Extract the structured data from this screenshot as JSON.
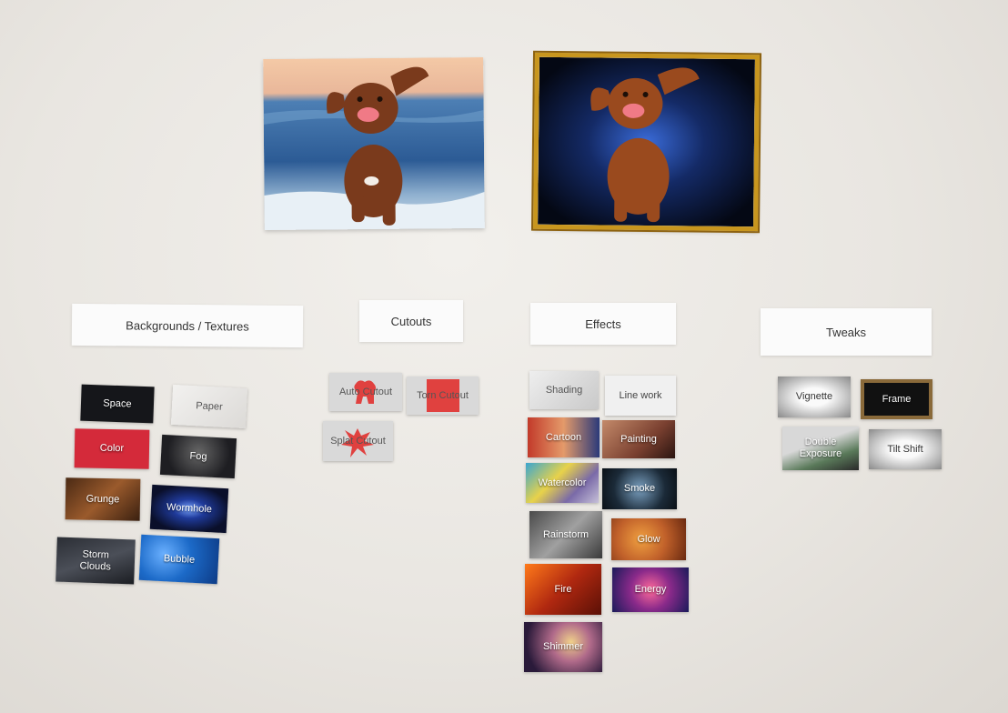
{
  "headers": {
    "backgrounds": "Backgrounds / Textures",
    "cutouts": "Cutouts",
    "effects": "Effects",
    "tweaks": "Tweaks"
  },
  "backgrounds": {
    "space": "Space",
    "paper": "Paper",
    "color": "Color",
    "fog": "Fog",
    "grunge": "Grunge",
    "wormhole": "Wormhole",
    "storm_clouds": "Storm Clouds",
    "bubble": "Bubble"
  },
  "cutouts": {
    "auto": "Auto Cutout",
    "torn": "Torn Cutout",
    "splat": "Splat Cutout"
  },
  "effects": {
    "shading": "Shading",
    "line_work": "Line work",
    "cartoon": "Cartoon",
    "painting": "Painting",
    "watercolor": "Watercolor",
    "smoke": "Smoke",
    "rainstorm": "Rainstorm",
    "glow": "Glow",
    "fire": "Fire",
    "energy": "Energy",
    "shimmer": "Shimmer"
  },
  "tweaks": {
    "vignette": "Vignette",
    "frame": "Frame",
    "double_exposure": "Double Exposure",
    "tilt_shift": "Tilt Shift"
  },
  "colors": {
    "frame_gold": "#c8961e",
    "color_tile": "#d42a3a",
    "torn_red": "#e0413f",
    "glow_blue": "#2a5bd0"
  },
  "icons": {
    "original_photo": "dog-running-beach-photo",
    "edited_photo": "dog-glow-framed-photo"
  }
}
